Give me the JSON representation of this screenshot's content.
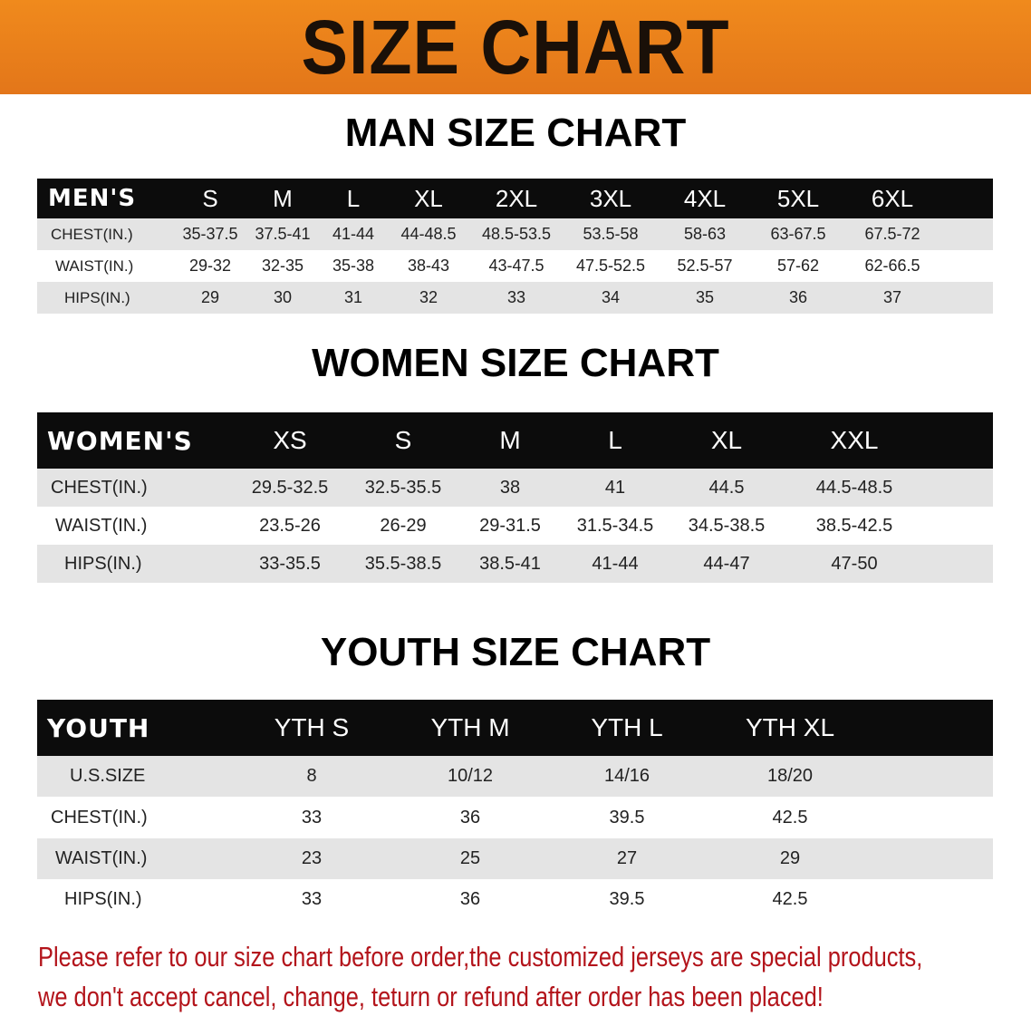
{
  "banner_title": "SIZE CHART",
  "men": {
    "title": "MAN SIZE CHART",
    "header": [
      "MEN'S",
      "S",
      "M",
      "L",
      "XL",
      "2XL",
      "3XL",
      "4XL",
      "5XL",
      "6XL"
    ],
    "rows": [
      [
        "CHEST(IN.)",
        "35-37.5",
        "37.5-41",
        "41-44",
        "44-48.5",
        "48.5-53.5",
        "53.5-58",
        "58-63",
        "63-67.5",
        "67.5-72"
      ],
      [
        "WAIST(IN.)",
        "29-32",
        "32-35",
        "35-38",
        "38-43",
        "43-47.5",
        "47.5-52.5",
        "52.5-57",
        "57-62",
        "62-66.5"
      ],
      [
        "HIPS(IN.)",
        "29",
        "30",
        "31",
        "32",
        "33",
        "34",
        "35",
        "36",
        "37"
      ]
    ]
  },
  "women": {
    "title": "WOMEN SIZE CHART",
    "header": [
      "WOMEN'S",
      "XS",
      "S",
      "M",
      "L",
      "XL",
      "XXL"
    ],
    "rows": [
      [
        "CHEST(IN.)",
        "29.5-32.5",
        "32.5-35.5",
        "38",
        "41",
        "44.5",
        "44.5-48.5"
      ],
      [
        "WAIST(IN.)",
        "23.5-26",
        "26-29",
        "29-31.5",
        "31.5-34.5",
        "34.5-38.5",
        "38.5-42.5"
      ],
      [
        "HIPS(IN.)",
        "33-35.5",
        "35.5-38.5",
        "38.5-41",
        "41-44",
        "44-47",
        "47-50"
      ]
    ]
  },
  "youth": {
    "title": "YOUTH SIZE CHART",
    "header": [
      "YOUTH",
      "YTH S",
      "YTH M",
      "YTH L",
      "YTH XL"
    ],
    "rows": [
      [
        "U.S.SIZE",
        "8",
        "10/12",
        "14/16",
        "18/20"
      ],
      [
        "CHEST(IN.)",
        "33",
        "36",
        "39.5",
        "42.5"
      ],
      [
        "WAIST(IN.)",
        "23",
        "25",
        "27",
        "29"
      ],
      [
        "HIPS(IN.)",
        "33",
        "36",
        "39.5",
        "42.5"
      ]
    ]
  },
  "note": {
    "line1": "Please refer to our size chart before order,the customized jerseys are special products,",
    "line2": "we don't accept cancel, change, teturn or refund after order has been placed!"
  },
  "colors": {
    "banner": "#e8801a",
    "header_row": "#0c0c0c",
    "stripe": "#e4e4e4",
    "note": "#b3141b"
  }
}
